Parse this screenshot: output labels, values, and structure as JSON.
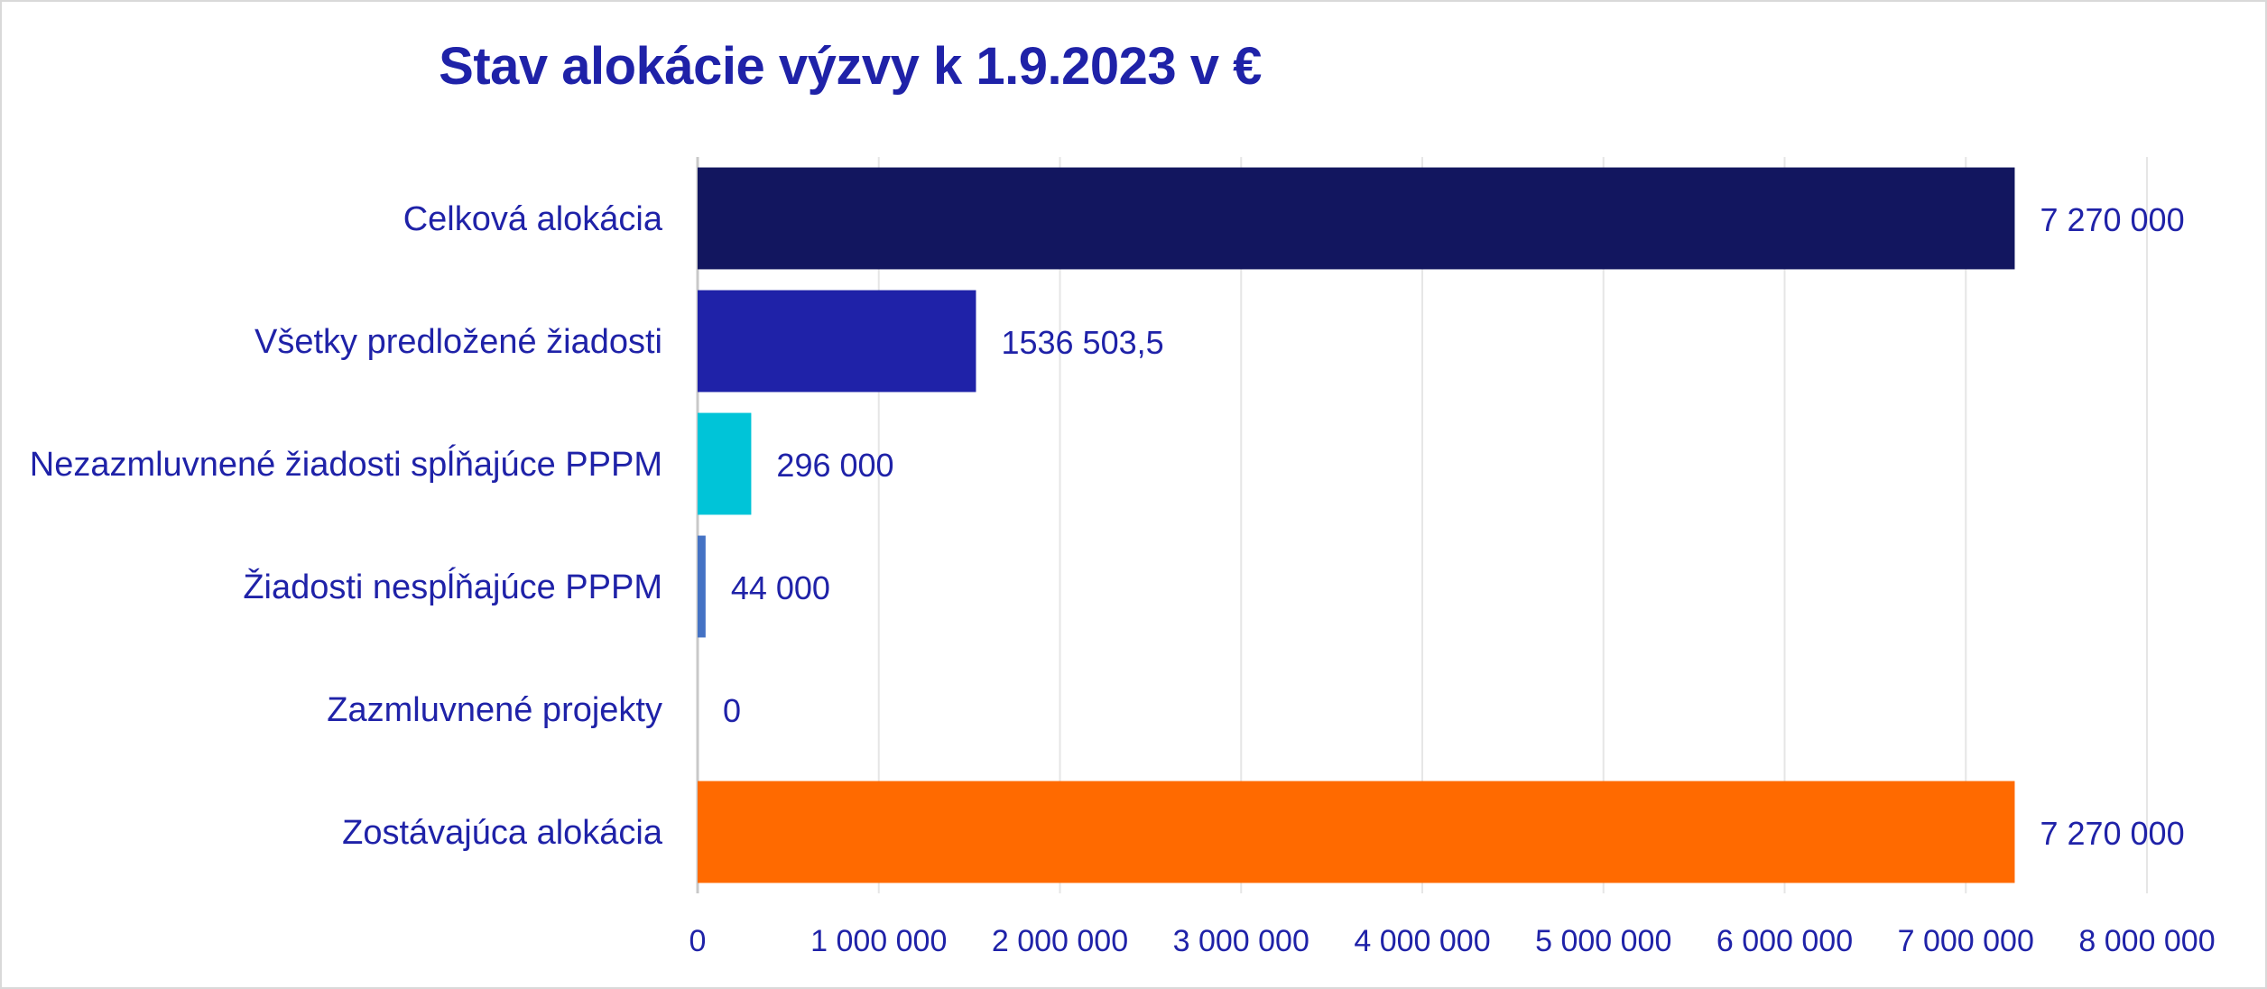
{
  "chart_data": {
    "type": "bar",
    "orientation": "horizontal",
    "title": "Stav alokácie výzvy k 1.9.2023 v €",
    "categories": [
      "Celková alokácia",
      "Všetky predložené žiadosti",
      "Nezazmluvnené žiadosti spĺňajúce PPPM",
      "Žiadosti nespĺňajúce PPPM",
      "Zazmluvnené projekty",
      "Zostávajúca alokácia"
    ],
    "values": [
      7270000,
      1536503.5,
      296000,
      44000,
      0,
      7270000
    ],
    "data_labels": [
      "7 270 000",
      "1536 503,5",
      "296 000",
      "44 000",
      "0",
      "7 270 000"
    ],
    "colors": [
      "#12165f",
      "#1f22a8",
      "#00c4d8",
      "#4472c4",
      "#4472c4",
      "#ff6a00"
    ],
    "xlim": [
      0,
      8000000
    ],
    "xticks": [
      0,
      1000000,
      2000000,
      3000000,
      4000000,
      5000000,
      6000000,
      7000000,
      8000000
    ],
    "xtick_labels": [
      "0",
      "1 000 000",
      "2 000 000",
      "3 000 000",
      "4 000 000",
      "5 000 000",
      "6 000 000",
      "7 000 000",
      "8 000 000"
    ],
    "grid": "vertical",
    "legend": "none",
    "text_color": "#1f22a8",
    "grid_color": "#e6e6e6"
  }
}
